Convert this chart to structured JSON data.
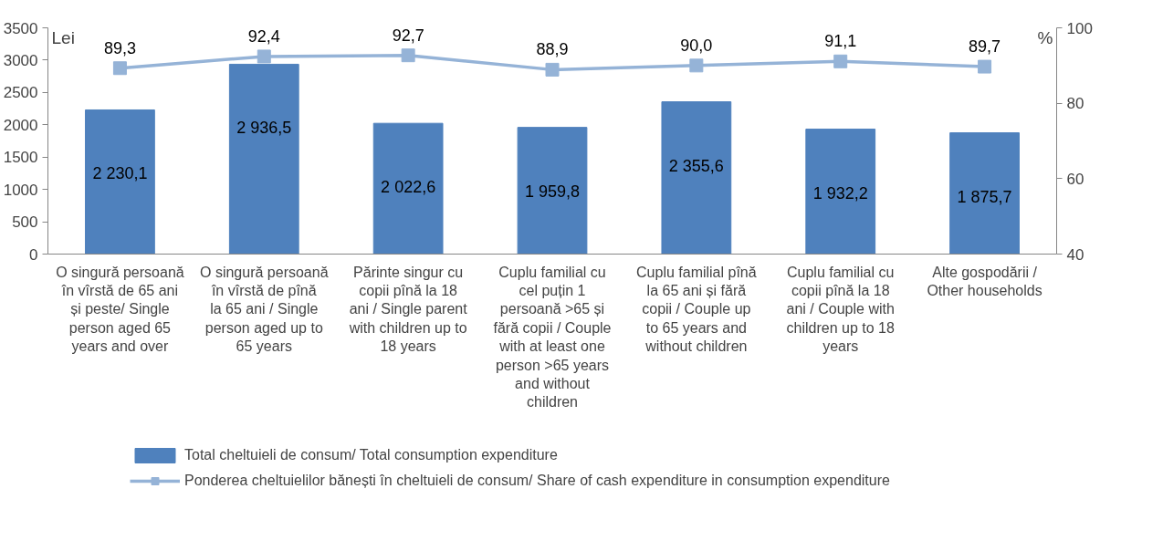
{
  "chart_data": {
    "type": "bar",
    "ylabel": "Lei",
    "y2label": "%",
    "categories": [
      "O singură persoană în vîrstă de 65 ani și peste/ Single person aged 65 years and over",
      "O singură persoană în vîrstă de pînă la 65 ani / Single person aged up to 65 years",
      "Părinte singur cu copii pînă la 18 ani / Single parent with children up to 18 years",
      "Cuplu familial cu cel puțin 1 persoană >65 și fără copii / Couple with at least one person >65 years and without children",
      "Cuplu familial pînă la 65 ani și fără copii / Couple up to 65 years and without children",
      "Cuplu familial cu copii pînă la 18 ani / Couple with children up to 18 years",
      "Alte gospodării / Other households"
    ],
    "series": [
      {
        "name": "Total cheltuieli de consum/ Total consumption expenditure",
        "color": "#4f81bd",
        "values": [
          2230.1,
          2936.5,
          2022.6,
          1959.8,
          2355.6,
          1932.2,
          1875.7
        ],
        "value_labels": [
          "2 230,1",
          "2 936,5",
          "2 022,6",
          "1 959,8",
          "2 355,6",
          "1 932,2",
          "1 875,7"
        ]
      },
      {
        "name": "Ponderea cheltuielilor bănești în cheltuieli de consum/ Share of cash expenditure in consumption expenditure",
        "type": "line",
        "axis": "y2",
        "color": "#95b3d7",
        "marker": "square",
        "values": [
          89.3,
          92.4,
          92.7,
          88.9,
          90.0,
          91.1,
          89.7
        ],
        "value_labels": [
          "89,3",
          "92,4",
          "92,7",
          "88,9",
          "90,0",
          "91,1",
          "89,7"
        ]
      }
    ],
    "ylim": [
      0,
      3500
    ],
    "yticks": [
      0,
      500,
      1000,
      1500,
      2000,
      2500,
      3000,
      3500
    ],
    "y2lim": [
      40,
      100
    ],
    "y2ticks": [
      40,
      60,
      80,
      100
    ],
    "grid": false,
    "legend": "bottom"
  }
}
